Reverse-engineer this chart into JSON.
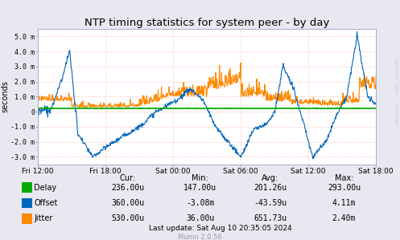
{
  "title": "NTP timing statistics for system peer - by day",
  "ylabel": "seconds",
  "background_color": "#e8e8f0",
  "plot_bg_color": "#ffffff",
  "grid_color": "#ffaaaa",
  "ylim": [
    -0.0035,
    0.0055
  ],
  "yticks": [
    -0.003,
    -0.002,
    -0.001,
    0,
    0.001,
    0.002,
    0.003,
    0.004,
    0.005
  ],
  "ytick_labels": [
    "-3.0 m",
    "-2.0 m",
    "-1.0 m",
    "0",
    "1.0 m",
    "2.0 m",
    "3.0 m",
    "4.0 m",
    "5.0 m"
  ],
  "xtick_labels": [
    "Fri 12:00",
    "Fri 18:00",
    "Sat 00:00",
    "Sat 06:00",
    "Sat 12:00",
    "Sat 18:00"
  ],
  "delay_color": "#00aa00",
  "offset_color": "#0066bb",
  "jitter_color": "#ff8800",
  "watermark": "RRDTOOL / TOBI OETIKER",
  "munin_version": "Munin 2.0.56",
  "legend_labels": [
    "Delay",
    "Offset",
    "Jitter"
  ],
  "stats_header": [
    "Cur:",
    "Min:",
    "Avg:",
    "Max:"
  ],
  "stats_delay": [
    "236.00u",
    "147.00u",
    "201.26u",
    "293.00u"
  ],
  "stats_offset": [
    "360.00u",
    "-3.08m",
    "-43.59u",
    "4.11m"
  ],
  "stats_jitter": [
    "530.00u",
    "36.00u",
    "651.73u",
    "2.40m"
  ],
  "last_update": "Last update: Sat Aug 10 20:35:05 2024"
}
